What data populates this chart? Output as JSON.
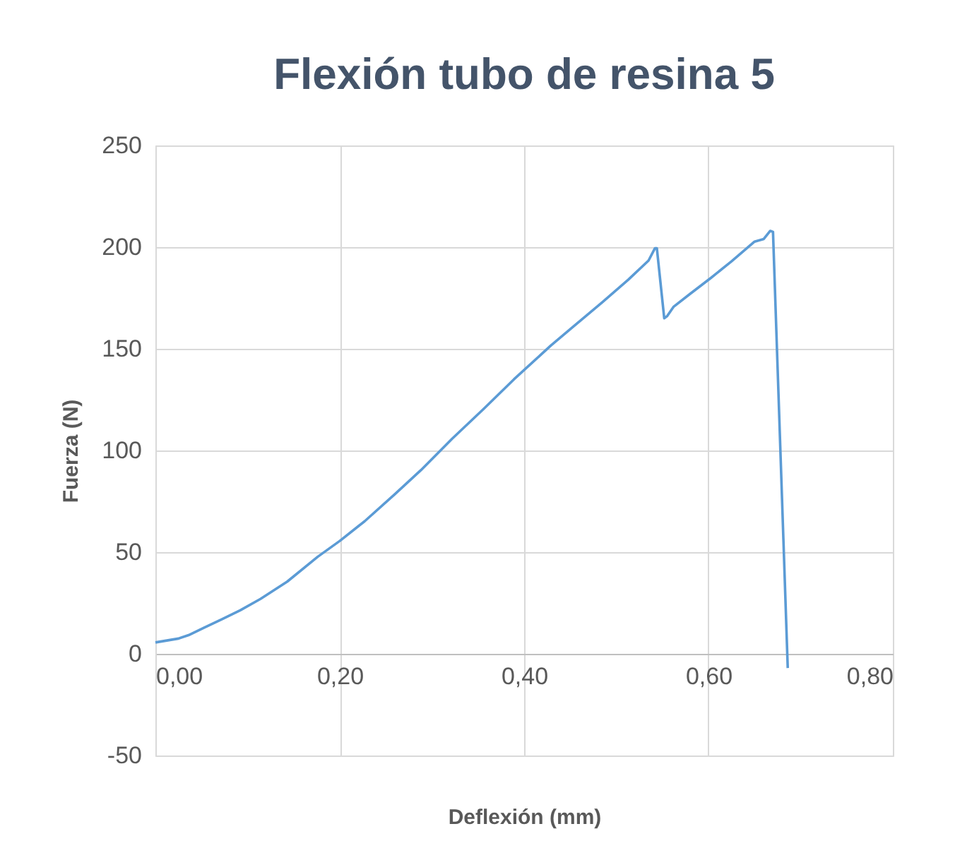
{
  "chart_data": {
    "type": "line",
    "title": "Flexión tubo de resina 5",
    "xlabel": "Deflexión (mm)",
    "ylabel": "Fuerza (N)",
    "x": [
      0,
      0.025,
      0.036,
      0.053,
      0.072,
      0.092,
      0.114,
      0.143,
      0.176,
      0.2,
      0.227,
      0.26,
      0.288,
      0.322,
      0.356,
      0.389,
      0.429,
      0.451,
      0.485,
      0.513,
      0.535,
      0.542,
      0.544,
      0.552,
      0.555,
      0.562,
      0.58,
      0.603,
      0.625,
      0.65,
      0.66,
      0.667,
      0.67,
      0.686
    ],
    "series": [
      {
        "color": "#5b9bd5",
        "values": [
          5.6,
          7.5,
          9.2,
          12.9,
          17,
          21.4,
          27,
          35.5,
          47.7,
          55.5,
          65.2,
          78.6,
          90.3,
          105.8,
          120.4,
          135,
          151.6,
          160,
          173,
          184,
          193.4,
          199.5,
          199.5,
          165,
          166,
          170.6,
          177,
          185,
          193,
          202.7,
          204,
          208,
          207.5,
          -7
        ]
      }
    ],
    "xlim": [
      0,
      0.8
    ],
    "xticks": [
      {
        "value": 0,
        "label": "0,00"
      },
      {
        "value": 0.2,
        "label": "0,20"
      },
      {
        "value": 0.4,
        "label": "0,40"
      },
      {
        "value": 0.6,
        "label": "0,60"
      },
      {
        "value": 0.8,
        "label": "0,80"
      }
    ],
    "ylim": [
      -50,
      250
    ],
    "yticks": [
      -50,
      0,
      50,
      100,
      150,
      200,
      250
    ],
    "grid": true,
    "marker": "none",
    "line_style": "solid"
  }
}
